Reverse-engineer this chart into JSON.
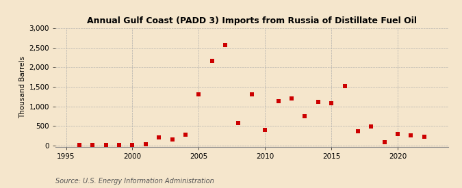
{
  "title": "Annual Gulf Coast (PADD 3) Imports from Russia of Distillate Fuel Oil",
  "ylabel": "Thousand Barrels",
  "source": "Source: U.S. Energy Information Administration",
  "background_color": "#f5e6cc",
  "plot_background_color": "#f5e6cc",
  "marker_color": "#cc0000",
  "marker": "s",
  "marker_size": 4,
  "xlim": [
    1994.2,
    2023.8
  ],
  "ylim": [
    -30,
    3000
  ],
  "yticks": [
    0,
    500,
    1000,
    1500,
    2000,
    2500,
    3000
  ],
  "xticks": [
    1995,
    2000,
    2005,
    2010,
    2015,
    2020
  ],
  "years": [
    1996,
    1997,
    1998,
    1999,
    2000,
    2001,
    2002,
    2003,
    2004,
    2005,
    2006,
    2007,
    2008,
    2009,
    2010,
    2011,
    2012,
    2013,
    2014,
    2015,
    2016,
    2017,
    2018,
    2019,
    2020,
    2021,
    2022
  ],
  "values": [
    5,
    5,
    5,
    10,
    15,
    30,
    200,
    150,
    280,
    1310,
    2160,
    2570,
    580,
    1310,
    390,
    1130,
    1200,
    740,
    1110,
    1080,
    1510,
    360,
    490,
    75,
    285,
    260,
    220
  ]
}
